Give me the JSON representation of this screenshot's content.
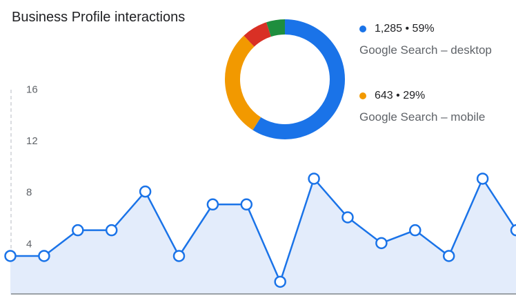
{
  "title": "Business Profile interactions",
  "chart_data": [
    {
      "type": "pie",
      "variant": "donut",
      "slices": [
        {
          "value_label": "1,285",
          "percent": 59,
          "label": "Google Search – desktop",
          "color": "#1a73e8"
        },
        {
          "value_label": "643",
          "percent": 29,
          "label": "Google Search – mobile",
          "color": "#f29900"
        },
        {
          "percent": 7,
          "color": "#d93025"
        },
        {
          "percent": 5,
          "color": "#1e8e3e"
        }
      ]
    },
    {
      "type": "area",
      "yticks": [
        4,
        8,
        12,
        16
      ],
      "ylim": [
        0,
        16
      ],
      "values": [
        3,
        3,
        5,
        5,
        8,
        3,
        7,
        7,
        1,
        9,
        6,
        4,
        5,
        3,
        9,
        5
      ],
      "color": "#1a73e8",
      "fill": "#e3ecfb"
    }
  ]
}
